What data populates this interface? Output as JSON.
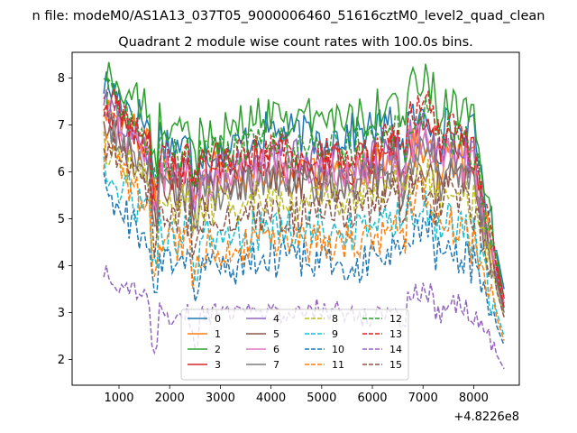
{
  "figure": {
    "suptitle": "n file: modeM0/AS1A13_037T05_9000006460_51616cztM0_level2_quad_clean",
    "title": "Quadrant 2 module wise count rates with 100.0s bins.",
    "x_offset_label": "+4.8226e8"
  },
  "chart_data": {
    "type": "line",
    "title": "Quadrant 2 module wise count rates with 100.0s bins.",
    "xlabel": "",
    "ylabel": "",
    "xlim": [
      75,
      8900
    ],
    "ylim": [
      1.45,
      8.55
    ],
    "x_offset": 482260000,
    "x_ticks": [
      1000,
      2000,
      3000,
      4000,
      5000,
      6000,
      7000,
      8000
    ],
    "y_ticks": [
      2,
      3,
      4,
      5,
      6,
      7,
      8
    ],
    "x_tick_labels": [
      "1000",
      "2000",
      "3000",
      "4000",
      "5000",
      "6000",
      "7000",
      "8000"
    ],
    "y_tick_labels": [
      "2",
      "3",
      "4",
      "5",
      "6",
      "7",
      "8"
    ],
    "grid": false,
    "legend_position": "lower center",
    "legend_columns": 4,
    "x": [
      700,
      2000,
      3000,
      4000,
      5000,
      6000,
      7000,
      8000,
      8600
    ],
    "series": [
      {
        "name": "0",
        "color": "#1f77b4",
        "dash": "solid",
        "values": [
          7.9,
          6.6,
          6.4,
          6.9,
          6.7,
          6.9,
          7.1,
          6.8,
          3.5
        ]
      },
      {
        "name": "1",
        "color": "#ff7f0e",
        "dash": "solid",
        "values": [
          7.5,
          6.0,
          6.1,
          5.9,
          6.0,
          6.2,
          6.6,
          6.1,
          3.2
        ]
      },
      {
        "name": "2",
        "color": "#2ca02c",
        "dash": "solid",
        "values": [
          8.1,
          6.9,
          6.8,
          7.3,
          7.1,
          7.3,
          7.9,
          7.0,
          3.3
        ]
      },
      {
        "name": "3",
        "color": "#d62728",
        "dash": "solid",
        "values": [
          7.6,
          6.0,
          6.2,
          6.3,
          6.1,
          6.2,
          6.8,
          6.3,
          3.3
        ]
      },
      {
        "name": "4",
        "color": "#9467bd",
        "dash": "solid",
        "values": [
          7.4,
          6.1,
          6.0,
          6.4,
          6.2,
          6.3,
          6.9,
          6.2,
          3.0
        ]
      },
      {
        "name": "5",
        "color": "#8c564b",
        "dash": "solid",
        "values": [
          7.0,
          5.5,
          5.6,
          5.9,
          5.7,
          5.8,
          6.2,
          5.6,
          3.1
        ]
      },
      {
        "name": "6",
        "color": "#e377c2",
        "dash": "solid",
        "values": [
          7.2,
          5.9,
          5.8,
          6.1,
          6.0,
          6.0,
          6.7,
          6.0,
          3.2
        ]
      },
      {
        "name": "7",
        "color": "#7f7f7f",
        "dash": "solid",
        "values": [
          7.0,
          5.6,
          5.5,
          5.9,
          5.7,
          5.8,
          6.4,
          5.6,
          3.0
        ]
      },
      {
        "name": "8",
        "color": "#bcbd22",
        "dash": "dashed",
        "values": [
          6.6,
          5.3,
          5.3,
          5.4,
          5.4,
          5.5,
          6.0,
          5.3,
          2.9
        ]
      },
      {
        "name": "9",
        "color": "#17becf",
        "dash": "dashed",
        "values": [
          6.0,
          4.6,
          4.6,
          4.8,
          4.8,
          4.7,
          5.3,
          4.6,
          2.5
        ]
      },
      {
        "name": "10",
        "color": "#1f77b4",
        "dash": "dashed",
        "values": [
          5.6,
          4.0,
          3.9,
          4.2,
          4.0,
          4.1,
          4.9,
          4.0,
          2.3
        ]
      },
      {
        "name": "11",
        "color": "#ff7f0e",
        "dash": "dashed",
        "values": [
          6.5,
          4.5,
          4.3,
          4.5,
          4.5,
          4.5,
          5.5,
          4.4,
          2.4
        ]
      },
      {
        "name": "12",
        "color": "#2ca02c",
        "dash": "dashed",
        "values": [
          7.7,
          6.3,
          6.4,
          6.6,
          6.4,
          6.6,
          7.2,
          6.5,
          3.1
        ]
      },
      {
        "name": "13",
        "color": "#d62728",
        "dash": "dashed",
        "values": [
          7.5,
          6.2,
          6.2,
          6.4,
          6.3,
          6.4,
          7.5,
          6.4,
          3.1
        ]
      },
      {
        "name": "14",
        "color": "#9467bd",
        "dash": "dashed",
        "values": [
          3.9,
          2.9,
          3.0,
          3.0,
          3.1,
          2.9,
          3.5,
          3.0,
          1.8
        ]
      },
      {
        "name": "15",
        "color": "#8c564b",
        "dash": "dashed",
        "values": [
          6.7,
          5.1,
          5.0,
          5.1,
          5.1,
          5.2,
          5.8,
          5.2,
          2.9
        ]
      }
    ]
  }
}
